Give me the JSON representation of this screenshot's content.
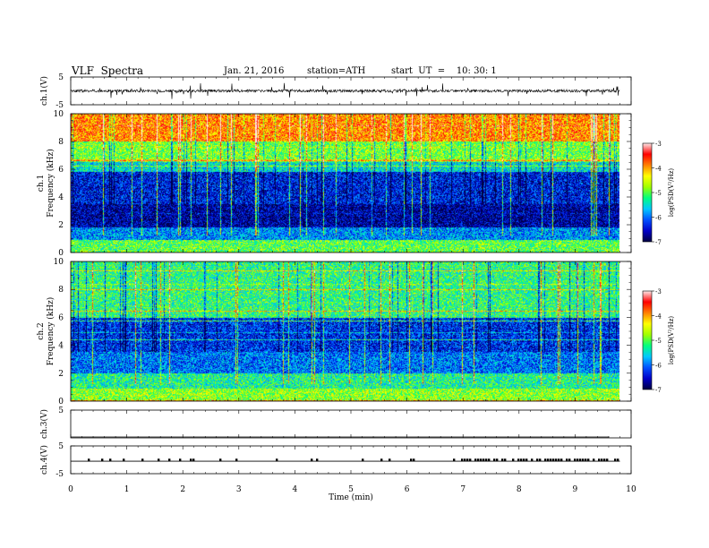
{
  "header": {
    "title": "VLF  Spectra",
    "date": "Jan. 21, 2016",
    "station": "station=ATH",
    "start": "start  UT  =    10: 30: 1"
  },
  "chart_data": [
    {
      "type": "line",
      "panel": "ch1",
      "ylabel": "ch.1(V)",
      "ylim": [
        -5,
        5
      ],
      "yticks": [
        "5",
        "-5"
      ],
      "baseline_v": 0,
      "noise_amplitude_v": 0.5
    },
    {
      "type": "heatmap",
      "panel": "spec1",
      "ylabel": "ch.1 Frequency  (kHz)",
      "ylabel_parts": [
        "ch.1",
        "Frequency  (kHz)"
      ],
      "ylim_khz": [
        0,
        10
      ],
      "yticks": [
        "0",
        "2",
        "4",
        "6",
        "8",
        "10"
      ],
      "colorbar": {
        "label": "log(PSD(V²/Hz)",
        "ticks": [
          "-3",
          "-4",
          "-5",
          "-6",
          "-7"
        ],
        "range": [
          -7,
          -3
        ]
      },
      "bands": [
        {
          "f": [
            8.0,
            10.0
          ],
          "v": -3.9
        },
        {
          "f": [
            6.5,
            8.0
          ],
          "v": -4.9
        },
        {
          "f": [
            5.8,
            6.5
          ],
          "v": -5.5
        },
        {
          "f": [
            3.5,
            5.8
          ],
          "v": -6.4
        },
        {
          "f": [
            1.8,
            3.5
          ],
          "v": -6.7
        },
        {
          "f": [
            0.9,
            1.8
          ],
          "v": -5.9
        },
        {
          "f": [
            0.0,
            0.9
          ],
          "v": -5.0
        }
      ]
    },
    {
      "type": "heatmap",
      "panel": "spec2",
      "ylabel": "ch.2 Frequency  (kHz)",
      "ylabel_parts": [
        "ch.2",
        "Frequency  (kHz)"
      ],
      "ylim_khz": [
        0,
        10
      ],
      "yticks": [
        "0",
        "2",
        "4",
        "6",
        "8",
        "10"
      ],
      "colorbar": {
        "label": "log(PSD(V²/Hz)",
        "ticks": [
          "-3",
          "-4",
          "-5",
          "-6",
          "-7"
        ],
        "range": [
          -7,
          -3
        ]
      },
      "bands": [
        {
          "f": [
            6.0,
            10.0
          ],
          "v": -5.2
        },
        {
          "f": [
            3.5,
            6.0
          ],
          "v": -6.3
        },
        {
          "f": [
            2.0,
            3.5
          ],
          "v": -6.0
        },
        {
          "f": [
            0.9,
            2.0
          ],
          "v": -5.3
        },
        {
          "f": [
            0.0,
            0.9
          ],
          "v": -4.8
        }
      ]
    },
    {
      "type": "line",
      "panel": "ch3",
      "ylabel": "ch.3(V)",
      "ylim": [
        -5,
        5
      ],
      "yticks": [
        "5"
      ],
      "baseline_v": -5
    },
    {
      "type": "line",
      "panel": "ch4",
      "ylabel": "ch.4(V)",
      "ylim": [
        -5,
        5
      ],
      "yticks": [
        "5",
        "-5"
      ],
      "baseline_v": -0.5,
      "pulse_v": 0.4
    }
  ],
  "x_axis": {
    "label": "Time  (min)",
    "range_min": [
      0,
      10
    ],
    "data_end_min": 9.8,
    "ticks": [
      "0",
      "1",
      "2",
      "3",
      "4",
      "5",
      "6",
      "7",
      "8",
      "9",
      "10"
    ]
  },
  "colormap": [
    "#000040",
    "#0000c8",
    "#0050ff",
    "#00c8ff",
    "#00ff80",
    "#a0ff00",
    "#ffff00",
    "#ff8000",
    "#ff0000",
    "#ffe8e8"
  ]
}
